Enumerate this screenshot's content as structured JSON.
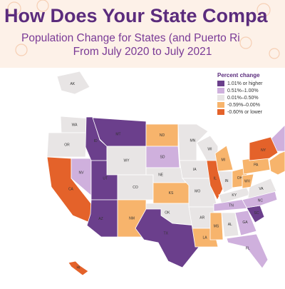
{
  "header": {
    "title": "How Does Your State Compa",
    "subtitle_lines": [
      "Population Change for States (and Puerto Ri",
      "From July 2020 to July 2021"
    ]
  },
  "legend": {
    "title": "Percent change",
    "items": [
      {
        "label": "1.01% or higher",
        "color": "#6b3f8c"
      },
      {
        "label": "0.51%–1.00%",
        "color": "#cfb0dd"
      },
      {
        "label": "0.01%–0.50%",
        "color": "#e8e5e5"
      },
      {
        "label": "-0.59%–0.00%",
        "color": "#f7b46c"
      },
      {
        "label": "-0.60% or lower",
        "color": "#e4622a"
      }
    ]
  },
  "states": [
    {
      "abbr": "AK",
      "category": 2
    },
    {
      "abbr": "WA",
      "category": 2
    },
    {
      "abbr": "OR",
      "category": 2
    },
    {
      "abbr": "CA",
      "category": 4
    },
    {
      "abbr": "NV",
      "category": 1
    },
    {
      "abbr": "ID",
      "category": 0
    },
    {
      "abbr": "MT",
      "category": 0
    },
    {
      "abbr": "WY",
      "category": 2
    },
    {
      "abbr": "UT",
      "category": 0
    },
    {
      "abbr": "CO",
      "category": 2
    },
    {
      "abbr": "AZ",
      "category": 0
    },
    {
      "abbr": "NM",
      "category": 3
    },
    {
      "abbr": "ND",
      "category": 3
    },
    {
      "abbr": "SD",
      "category": 1
    },
    {
      "abbr": "NE",
      "category": 2
    },
    {
      "abbr": "KS",
      "category": 3
    },
    {
      "abbr": "OK",
      "category": 2
    },
    {
      "abbr": "TX",
      "category": 0
    },
    {
      "abbr": "MN",
      "category": 2
    },
    {
      "abbr": "IA",
      "category": 2
    },
    {
      "abbr": "MO",
      "category": 2
    },
    {
      "abbr": "AR",
      "category": 2
    },
    {
      "abbr": "LA",
      "category": 3
    },
    {
      "abbr": "WI",
      "category": 2
    },
    {
      "abbr": "IL",
      "category": 4
    },
    {
      "abbr": "MI",
      "category": 3
    },
    {
      "abbr": "IN",
      "category": 2
    },
    {
      "abbr": "OH",
      "category": 3
    },
    {
      "abbr": "KY",
      "category": 2
    },
    {
      "abbr": "TN",
      "category": 1
    },
    {
      "abbr": "MS",
      "category": 3
    },
    {
      "abbr": "AL",
      "category": 2
    },
    {
      "abbr": "GA",
      "category": 1
    },
    {
      "abbr": "FL",
      "category": 1
    },
    {
      "abbr": "SC",
      "category": 0
    },
    {
      "abbr": "NC",
      "category": 1
    },
    {
      "abbr": "VA",
      "category": 2
    },
    {
      "abbr": "WV",
      "category": 3
    },
    {
      "abbr": "PA",
      "category": 3
    },
    {
      "abbr": "NY",
      "category": 4
    },
    {
      "abbr": "HI",
      "category": 4
    }
  ]
}
